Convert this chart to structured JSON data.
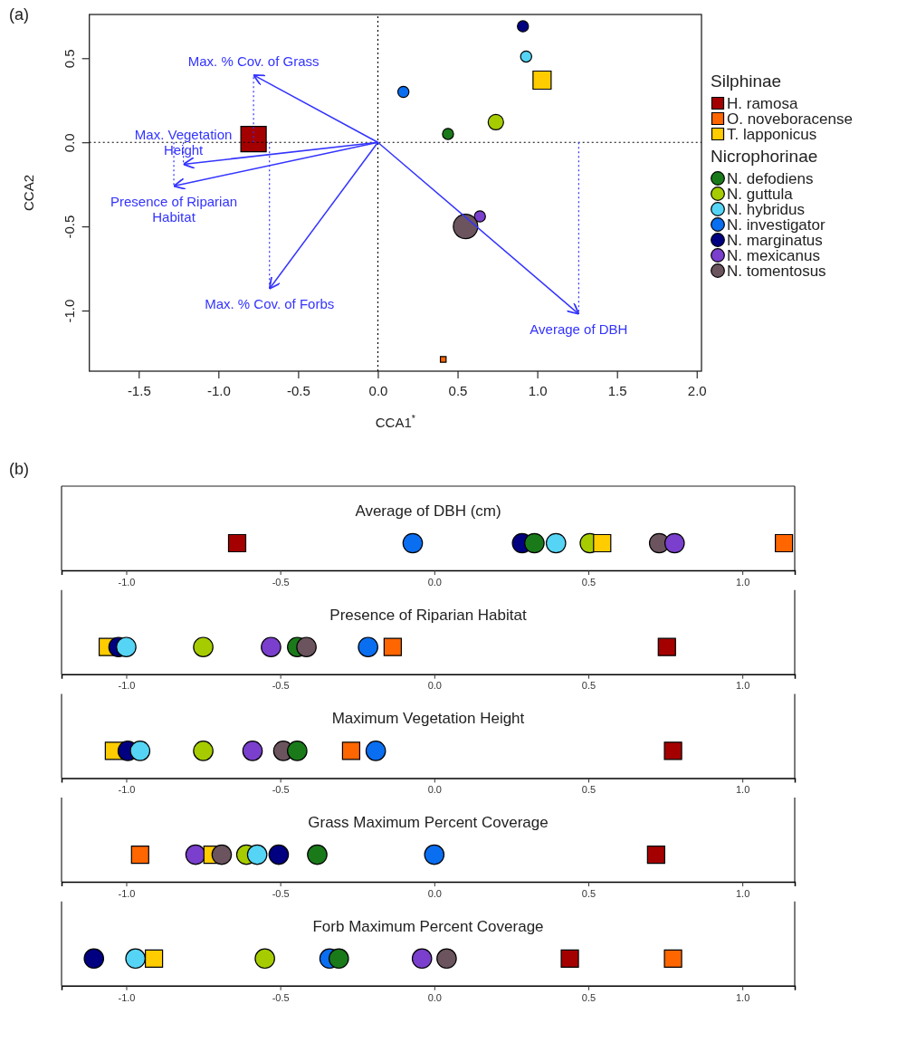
{
  "chart_data": [
    {
      "type": "bubble",
      "xlabel": "CCA1$^{*}$",
      "ylabel": "CCA2",
      "legend": "right",
      "xlim": [
        -1.81,
        2.03
      ],
      "ylim": [
        -1.36,
        0.76
      ],
      "xticks": [
        -1.5,
        {
          "value": -1,
          "label": "-1.0"
        },
        -0.5,
        {
          "value": 0,
          "label": "0.0"
        },
        0.5,
        {
          "value": 1,
          "label": "1.0"
        },
        1.5,
        {
          "value": 2,
          "label": "2.0"
        }
      ],
      "yticks": [
        {
          "value": -1,
          "label": "-1.0"
        },
        -0.5,
        {
          "value": 0,
          "label": "0.0"
        },
        0.5
      ],
      "annotations": [
        "(a)",
        "Silphinae",
        "Nicrophorinae",
        {
          "text": "Max. % Cov. of Grass",
          "x": -0.78,
          "y": 0.4
        },
        {
          "text": "Max. Vegetation Height",
          "x": -1.22,
          "y": -0.13
        },
        {
          "text": "Presence of Riparian Habitat",
          "x": -1.28,
          "y": -0.26
        },
        {
          "text": "Max. % Cov. of Forbs",
          "x": -0.68,
          "y": -0.87
        },
        {
          "text": "Average of DBH",
          "x": 1.26,
          "y": -1.02
        }
      ],
      "series": [
        {
          "type": "line",
          "color": "#000000",
          "line_style": "dotted",
          "x": [
            0,
            0
          ],
          "values": [
            -1.36,
            0.76
          ]
        },
        {
          "type": "line",
          "color": "#000000",
          "line_style": "dotted",
          "x": [
            -1.81,
            2.03
          ],
          "values": [
            0,
            0
          ]
        },
        {
          "type": "line",
          "color": "#3333ff",
          "x": [
            0,
            -0.78
          ],
          "values": [
            0,
            0.4
          ]
        },
        {
          "type": "line",
          "color": "#3333ff",
          "x": [
            0,
            -1.22
          ],
          "values": [
            0,
            -0.13
          ]
        },
        {
          "type": "line",
          "color": "#3333ff",
          "x": [
            0,
            -1.28
          ],
          "values": [
            0,
            -0.26
          ]
        },
        {
          "type": "line",
          "color": "#3333ff",
          "x": [
            0,
            -0.68
          ],
          "values": [
            0,
            -0.87
          ]
        },
        {
          "type": "line",
          "color": "#3333ff",
          "x": [
            0,
            1.26
          ],
          "values": [
            0,
            -1.02
          ]
        },
        {
          "type": "line",
          "color": "#3333ff",
          "line_style": "dotted",
          "x": [
            -0.78,
            -0.78
          ],
          "values": [
            0,
            0.4
          ]
        },
        {
          "type": "line",
          "color": "#3333ff",
          "line_style": "dotted",
          "x": [
            -1.22,
            -1.22
          ],
          "values": [
            0,
            -0.13
          ]
        },
        {
          "type": "line",
          "color": "#3333ff",
          "line_style": "dotted",
          "x": [
            -1.28,
            -1.28
          ],
          "values": [
            0,
            -0.26
          ]
        },
        {
          "type": "line",
          "color": "#3333ff",
          "line_style": "dotted",
          "x": [
            -0.68,
            -0.68
          ],
          "values": [
            0,
            -0.87
          ]
        },
        {
          "type": "line",
          "color": "#3333ff",
          "line_style": "dotted",
          "x": [
            1.26,
            1.26
          ],
          "values": [
            0,
            -1.02
          ]
        },
        {
          "name": "H. ramosa",
          "color": "#a50000",
          "marker": "square",
          "x": [
            -0.78
          ],
          "values": [
            0.02
          ],
          "sizes": [
            1
          ]
        },
        {
          "name": "O. noveboracense",
          "color": "#ff6600",
          "marker": "square",
          "x": [
            0.41
          ],
          "values": [
            -1.29
          ],
          "sizes": [
            0.05
          ]
        },
        {
          "name": "T. lapponicus",
          "color": "#ffcc00",
          "marker": "square",
          "x": [
            1.03
          ],
          "values": [
            0.37
          ],
          "sizes": [
            0.51
          ]
        },
        {
          "name": "N. defodiens",
          "color": "#1a7a1a",
          "marker": "circle",
          "x": [
            0.44
          ],
          "values": [
            0.05
          ],
          "sizes": [
            0.15
          ]
        },
        {
          "name": "N. guttula",
          "color": "#a6cc00",
          "marker": "circle",
          "x": [
            0.74
          ],
          "values": [
            0.12
          ],
          "sizes": [
            0.29
          ]
        },
        {
          "name": "N. hybridus",
          "color": "#55d4f5",
          "marker": "circle",
          "x": [
            0.93
          ],
          "values": [
            0.51
          ],
          "sizes": [
            0.15
          ]
        },
        {
          "name": "N. investigator",
          "color": "#0a6ef0",
          "marker": "circle",
          "x": [
            0.16
          ],
          "values": [
            0.3
          ],
          "sizes": [
            0.15
          ]
        },
        {
          "name": "N. marginatus",
          "color": "#000080",
          "marker": "circle",
          "x": [
            0.91
          ],
          "values": [
            0.69
          ],
          "sizes": [
            0.15
          ]
        },
        {
          "name": "N. mexicanus",
          "color": "#7a3fcc",
          "marker": "circle",
          "x": [
            0.64
          ],
          "values": [
            -0.44
          ],
          "sizes": [
            0.15
          ]
        },
        {
          "name": "N. tomentosus",
          "color": "#6b545e",
          "marker": "circle",
          "x": [
            0.55
          ],
          "values": [
            -0.5
          ],
          "sizes": [
            0.73
          ]
        }
      ]
    },
    {
      "type": "scatter",
      "orientation": "horizontal",
      "title": "Average of DBH (cm)",
      "annotations": [
        "(b)"
      ],
      "tick_labels": "x",
      "categories": [
        null
      ],
      "xlim": [
        -1.21,
        1.17
      ],
      "xticks": [
        {
          "value": -1,
          "label": "-1.0"
        },
        -0.5,
        {
          "value": 0,
          "label": "0.0"
        },
        0.5,
        {
          "value": 1,
          "label": "1.0"
        }
      ],
      "series": [
        {
          "color": "#a50000",
          "marker": "square",
          "values": [
            -0.64
          ]
        },
        {
          "color": "#ff6600",
          "marker": "square",
          "values": [
            1.135
          ]
        },
        {
          "color": "#ffcc00",
          "marker": "square",
          "values": [
            0.545
          ]
        },
        {
          "color": "#1a7a1a",
          "marker": "circle",
          "values": [
            0.325
          ]
        },
        {
          "color": "#a6cc00",
          "marker": "circle",
          "values": [
            0.505
          ]
        },
        {
          "color": "#55d4f5",
          "marker": "circle",
          "values": [
            0.395
          ]
        },
        {
          "color": "#0a6ef0",
          "marker": "circle",
          "values": [
            -0.07
          ]
        },
        {
          "color": "#000080",
          "marker": "circle",
          "values": [
            0.285
          ]
        },
        {
          "color": "#7a3fcc",
          "marker": "circle",
          "values": [
            0.78
          ]
        },
        {
          "color": "#6b545e",
          "marker": "circle",
          "values": [
            0.73
          ]
        }
      ]
    },
    {
      "type": "scatter",
      "orientation": "horizontal",
      "title": "Presence of Riparian Habitat",
      "tick_labels": "x",
      "categories": [
        null
      ],
      "xlim": [
        -1.21,
        1.17
      ],
      "xticks": [
        {
          "value": -1,
          "label": "-1.0"
        },
        -0.5,
        {
          "value": 0,
          "label": "0.0"
        },
        0.5,
        {
          "value": 1,
          "label": "1.0"
        }
      ],
      "series": [
        {
          "color": "#a50000",
          "marker": "square",
          "values": [
            0.755
          ]
        },
        {
          "color": "#ff6600",
          "marker": "square",
          "values": [
            -0.135
          ]
        },
        {
          "color": "#ffcc00",
          "marker": "square",
          "values": [
            -1.06
          ]
        },
        {
          "color": "#1a7a1a",
          "marker": "circle",
          "values": [
            -0.445
          ]
        },
        {
          "color": "#a6cc00",
          "marker": "circle",
          "values": [
            -0.75
          ]
        },
        {
          "color": "#55d4f5",
          "marker": "circle",
          "values": [
            -1.0
          ]
        },
        {
          "color": "#0a6ef0",
          "marker": "circle",
          "values": [
            -0.215
          ]
        },
        {
          "color": "#000080",
          "marker": "circle",
          "values": [
            -1.025
          ]
        },
        {
          "color": "#7a3fcc",
          "marker": "circle",
          "values": [
            -0.53
          ]
        },
        {
          "color": "#6b545e",
          "marker": "circle",
          "values": [
            -0.415
          ]
        }
      ]
    },
    {
      "type": "scatter",
      "orientation": "horizontal",
      "title": "Maximum Vegetation Height",
      "tick_labels": "x",
      "categories": [
        null
      ],
      "xlim": [
        -1.21,
        1.17
      ],
      "xticks": [
        {
          "value": -1,
          "label": "-1.0"
        },
        -0.5,
        {
          "value": 0,
          "label": "0.0"
        },
        0.5,
        {
          "value": 1,
          "label": "1.0"
        }
      ],
      "series": [
        {
          "color": "#a50000",
          "marker": "square",
          "values": [
            0.775
          ]
        },
        {
          "color": "#ff6600",
          "marker": "square",
          "values": [
            -0.27
          ]
        },
        {
          "color": "#ffcc00",
          "marker": "square",
          "values": [
            -1.04
          ]
        },
        {
          "color": "#1a7a1a",
          "marker": "circle",
          "values": [
            -0.445
          ]
        },
        {
          "color": "#a6cc00",
          "marker": "circle",
          "values": [
            -0.75
          ]
        },
        {
          "color": "#55d4f5",
          "marker": "circle",
          "values": [
            -0.955
          ]
        },
        {
          "color": "#0a6ef0",
          "marker": "circle",
          "values": [
            -0.19
          ]
        },
        {
          "color": "#000080",
          "marker": "circle",
          "values": [
            -0.995
          ]
        },
        {
          "color": "#7a3fcc",
          "marker": "circle",
          "values": [
            -0.59
          ]
        },
        {
          "color": "#6b545e",
          "marker": "circle",
          "values": [
            -0.49
          ]
        }
      ]
    },
    {
      "type": "scatter",
      "orientation": "horizontal",
      "title": "Grass Maximum Percent Coverage",
      "tick_labels": "x",
      "categories": [
        null
      ],
      "xlim": [
        -1.21,
        1.17
      ],
      "xticks": [
        {
          "value": -1,
          "label": "-1.0"
        },
        -0.5,
        {
          "value": 0,
          "label": "0.0"
        },
        0.5,
        {
          "value": 1,
          "label": "1.0"
        }
      ],
      "series": [
        {
          "color": "#a50000",
          "marker": "square",
          "values": [
            0.72
          ]
        },
        {
          "color": "#ff6600",
          "marker": "square",
          "values": [
            -0.955
          ]
        },
        {
          "color": "#ffcc00",
          "marker": "square",
          "values": [
            -0.72
          ]
        },
        {
          "color": "#1a7a1a",
          "marker": "circle",
          "values": [
            -0.38
          ]
        },
        {
          "color": "#a6cc00",
          "marker": "circle",
          "values": [
            -0.61
          ]
        },
        {
          "color": "#55d4f5",
          "marker": "circle",
          "values": [
            -0.575
          ]
        },
        {
          "color": "#0a6ef0",
          "marker": "circle",
          "values": [
            0.0
          ]
        },
        {
          "color": "#000080",
          "marker": "circle",
          "values": [
            -0.505
          ]
        },
        {
          "color": "#7a3fcc",
          "marker": "circle",
          "values": [
            -0.775
          ]
        },
        {
          "color": "#6b545e",
          "marker": "circle",
          "values": [
            -0.69
          ]
        }
      ]
    },
    {
      "type": "scatter",
      "orientation": "horizontal",
      "title": "Forb Maximum Percent Coverage",
      "tick_labels": "x",
      "categories": [
        null
      ],
      "xlim": [
        -1.21,
        1.17
      ],
      "xticks": [
        {
          "value": -1,
          "label": "-1.0"
        },
        -0.5,
        {
          "value": 0,
          "label": "0.0"
        },
        0.5,
        {
          "value": 1,
          "label": "1.0"
        }
      ],
      "series": [
        {
          "color": "#a50000",
          "marker": "square",
          "values": [
            0.44
          ]
        },
        {
          "color": "#ff6600",
          "marker": "square",
          "values": [
            0.775
          ]
        },
        {
          "color": "#ffcc00",
          "marker": "square",
          "values": [
            -0.91
          ]
        },
        {
          "color": "#1a7a1a",
          "marker": "circle",
          "values": [
            -0.31
          ]
        },
        {
          "color": "#a6cc00",
          "marker": "circle",
          "values": [
            -0.55
          ]
        },
        {
          "color": "#55d4f5",
          "marker": "circle",
          "values": [
            -0.97
          ]
        },
        {
          "color": "#0a6ef0",
          "marker": "circle",
          "values": [
            -0.34
          ]
        },
        {
          "color": "#000080",
          "marker": "circle",
          "values": [
            -1.105
          ]
        },
        {
          "color": "#7a3fcc",
          "marker": "circle",
          "values": [
            -0.04
          ]
        },
        {
          "color": "#6b545e",
          "marker": "circle",
          "values": [
            0.04
          ]
        }
      ]
    }
  ]
}
